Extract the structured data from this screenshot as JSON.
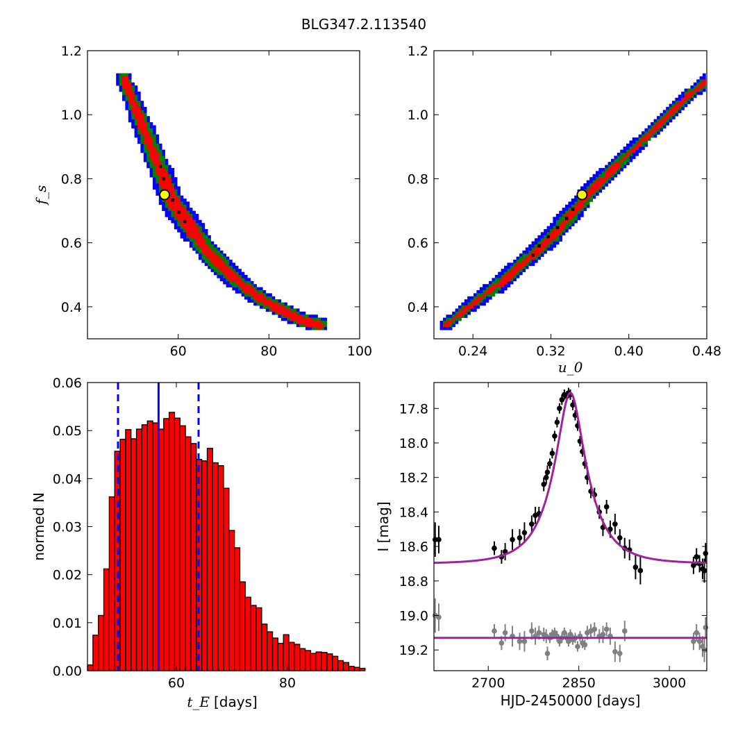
{
  "figure": {
    "title": "BLG347.2.113540"
  },
  "chart_data": [
    {
      "type": "heatmap",
      "id": "fs_vs_tE",
      "xlabel": "",
      "ylabel": "f_s",
      "xlim": [
        40,
        100
      ],
      "ylim": [
        0.3,
        1.2
      ],
      "xticks": [
        "60",
        "80",
        "100"
      ],
      "yticks": [
        "0.4",
        "0.6",
        "0.8",
        "1.0",
        "1.2"
      ],
      "colors": {
        "outer": "#0000ff",
        "middle": "#008000",
        "inner": "#ff0000",
        "chain": "#000000"
      },
      "ridge": [
        [
          47.5,
          1.12
        ],
        [
          50,
          1.03
        ],
        [
          52,
          0.96
        ],
        [
          54,
          0.89
        ],
        [
          56,
          0.82
        ],
        [
          58,
          0.74
        ],
        [
          60,
          0.7
        ],
        [
          63,
          0.64
        ],
        [
          66,
          0.58
        ],
        [
          70,
          0.52
        ],
        [
          74,
          0.47
        ],
        [
          78,
          0.43
        ],
        [
          82,
          0.4
        ],
        [
          86,
          0.37
        ],
        [
          91,
          0.35
        ]
      ],
      "best_fit": {
        "tE": 57.0,
        "fs": 0.75
      }
    },
    {
      "type": "heatmap",
      "id": "fs_vs_u0",
      "xlabel": "u_0",
      "ylabel": "",
      "xlim": [
        0.2,
        0.48
      ],
      "ylim": [
        0.3,
        1.2
      ],
      "xticks": [
        "0.24",
        "0.32",
        "0.40",
        "0.48"
      ],
      "yticks": [
        "0.4",
        "0.6",
        "0.8",
        "1.0",
        "1.2"
      ],
      "colors": {
        "outer": "#0000ff",
        "middle": "#008000",
        "inner": "#ff0000",
        "chain": "#000000"
      },
      "ridge": [
        [
          0.21,
          0.35
        ],
        [
          0.24,
          0.42
        ],
        [
          0.27,
          0.49
        ],
        [
          0.3,
          0.57
        ],
        [
          0.32,
          0.63
        ],
        [
          0.34,
          0.7
        ],
        [
          0.36,
          0.77
        ],
        [
          0.38,
          0.83
        ],
        [
          0.4,
          0.89
        ],
        [
          0.42,
          0.95
        ],
        [
          0.44,
          1.01
        ],
        [
          0.46,
          1.07
        ],
        [
          0.48,
          1.12
        ]
      ],
      "best_fit": {
        "u0": 0.352,
        "fs": 0.75
      }
    },
    {
      "type": "bar",
      "id": "tE_histogram",
      "xlabel": "t_E",
      "xlabel_unit": "[days]",
      "ylabel": "normed N",
      "xlim": [
        44,
        93
      ],
      "ylim": [
        0,
        0.06
      ],
      "xticks": [
        "60",
        "80"
      ],
      "yticks": [
        "0.00",
        "0.01",
        "0.02",
        "0.03",
        "0.04",
        "0.05",
        "0.06"
      ],
      "bin_start": 44.0,
      "bin_width": 0.98,
      "values": [
        0.0012,
        0.0074,
        0.0115,
        0.0212,
        0.0362,
        0.0457,
        0.0482,
        0.0502,
        0.0483,
        0.0503,
        0.0512,
        0.052,
        0.0516,
        0.0503,
        0.0525,
        0.0538,
        0.0526,
        0.051,
        0.0487,
        0.0473,
        0.044,
        0.0437,
        0.0463,
        0.0433,
        0.0427,
        0.038,
        0.0292,
        0.0256,
        0.0185,
        0.0153,
        0.0136,
        0.0131,
        0.0097,
        0.0081,
        0.0068,
        0.0057,
        0.0075,
        0.0059,
        0.0055,
        0.0046,
        0.0042,
        0.0036,
        0.0039,
        0.0038,
        0.0035,
        0.003,
        0.0021,
        0.0017,
        0.0009,
        0.0007,
        0.0005,
        0.0004,
        0.0003,
        0.0002,
        0.0004,
        0.0001,
        0.0002,
        0.0001,
        0.0001,
        0.0001
      ],
      "bar_color": "#ff0000",
      "median": 56.8,
      "interval": [
        49.5,
        64.0
      ]
    },
    {
      "type": "scatter",
      "id": "light_curve",
      "xlabel": "HJD-2450000 [days]",
      "ylabel": "I [mag]",
      "xlim": [
        2610,
        3062
      ],
      "ylim": [
        19.32,
        17.65
      ],
      "xticks": [
        "2700",
        "2850",
        "3000"
      ],
      "yticks": [
        "17.8",
        "18.0",
        "18.2",
        "18.4",
        "18.6",
        "18.8",
        "19.0",
        "19.2"
      ],
      "model": {
        "t0": 2836,
        "u0": 0.35,
        "tE": 57,
        "fs": 0.75,
        "baseline": 18.7,
        "color": "#a020a0"
      },
      "residual_baseline": 19.13,
      "points": [
        [
          2612,
          18.56,
          0.1
        ],
        [
          2618,
          18.56,
          0.08
        ],
        [
          2710,
          18.61,
          0.04
        ],
        [
          2722,
          18.66,
          0.04
        ],
        [
          2728,
          18.63,
          0.05
        ],
        [
          2740,
          18.56,
          0.06
        ],
        [
          2752,
          18.55,
          0.05
        ],
        [
          2760,
          18.52,
          0.06
        ],
        [
          2772,
          18.47,
          0.05
        ],
        [
          2778,
          18.42,
          0.05
        ],
        [
          2784,
          18.41,
          0.04
        ],
        [
          2792,
          18.24,
          0.04
        ],
        [
          2796,
          18.2,
          0.04
        ],
        [
          2798,
          18.17,
          0.04
        ],
        [
          2802,
          18.12,
          0.03
        ],
        [
          2806,
          18.06,
          0.03
        ],
        [
          2810,
          17.96,
          0.03
        ],
        [
          2814,
          17.88,
          0.03
        ],
        [
          2818,
          17.8,
          0.03
        ],
        [
          2822,
          17.75,
          0.03
        ],
        [
          2826,
          17.72,
          0.03
        ],
        [
          2830,
          17.73,
          0.03
        ],
        [
          2833,
          17.71,
          0.03
        ],
        [
          2836,
          17.72,
          0.03
        ],
        [
          2840,
          17.78,
          0.03
        ],
        [
          2844,
          17.84,
          0.03
        ],
        [
          2848,
          17.9,
          0.03
        ],
        [
          2852,
          17.99,
          0.03
        ],
        [
          2856,
          18.05,
          0.03
        ],
        [
          2860,
          18.12,
          0.03
        ],
        [
          2864,
          18.2,
          0.04
        ],
        [
          2870,
          18.28,
          0.04
        ],
        [
          2876,
          18.3,
          0.04
        ],
        [
          2884,
          18.4,
          0.04
        ],
        [
          2890,
          18.49,
          0.05
        ],
        [
          2896,
          18.37,
          0.04
        ],
        [
          2902,
          18.5,
          0.05
        ],
        [
          2910,
          18.47,
          0.06
        ],
        [
          2918,
          18.55,
          0.05
        ],
        [
          2926,
          18.61,
          0.06
        ],
        [
          2934,
          18.62,
          0.06
        ],
        [
          2944,
          18.72,
          0.07
        ],
        [
          2952,
          18.74,
          0.08
        ],
        [
          3040,
          18.71,
          0.05
        ],
        [
          3045,
          18.66,
          0.05
        ],
        [
          3050,
          18.7,
          0.05
        ],
        [
          3055,
          18.73,
          0.06
        ],
        [
          3058,
          18.74,
          0.07
        ],
        [
          3060,
          18.64,
          0.06
        ]
      ],
      "residuals": [
        [
          2612,
          19.0,
          0.1
        ],
        [
          2618,
          19.01,
          0.08
        ],
        [
          2710,
          19.09,
          0.04
        ],
        [
          2722,
          19.16,
          0.04
        ],
        [
          2728,
          19.1,
          0.05
        ],
        [
          2740,
          19.12,
          0.06
        ],
        [
          2752,
          19.15,
          0.05
        ],
        [
          2760,
          19.15,
          0.06
        ],
        [
          2772,
          19.09,
          0.05
        ],
        [
          2778,
          19.12,
          0.05
        ],
        [
          2784,
          19.1,
          0.04
        ],
        [
          2792,
          19.11,
          0.04
        ],
        [
          2796,
          19.12,
          0.04
        ],
        [
          2798,
          19.22,
          0.04
        ],
        [
          2802,
          19.13,
          0.03
        ],
        [
          2806,
          19.11,
          0.03
        ],
        [
          2810,
          19.1,
          0.03
        ],
        [
          2814,
          19.12,
          0.03
        ],
        [
          2818,
          19.15,
          0.03
        ],
        [
          2822,
          19.13,
          0.03
        ],
        [
          2826,
          19.1,
          0.03
        ],
        [
          2830,
          19.13,
          0.03
        ],
        [
          2833,
          19.15,
          0.03
        ],
        [
          2836,
          19.11,
          0.03
        ],
        [
          2840,
          19.14,
          0.03
        ],
        [
          2844,
          19.13,
          0.03
        ],
        [
          2848,
          19.18,
          0.03
        ],
        [
          2852,
          19.12,
          0.03
        ],
        [
          2856,
          19.16,
          0.03
        ],
        [
          2860,
          19.17,
          0.03
        ],
        [
          2864,
          19.1,
          0.04
        ],
        [
          2870,
          19.09,
          0.04
        ],
        [
          2876,
          19.08,
          0.04
        ],
        [
          2884,
          19.12,
          0.04
        ],
        [
          2890,
          19.11,
          0.05
        ],
        [
          2896,
          19.08,
          0.04
        ],
        [
          2902,
          19.12,
          0.05
        ],
        [
          2910,
          19.21,
          0.06
        ],
        [
          2918,
          19.22,
          0.05
        ],
        [
          2926,
          19.09,
          0.06
        ],
        [
          3040,
          19.15,
          0.05
        ],
        [
          3045,
          19.1,
          0.05
        ],
        [
          3050,
          19.15,
          0.05
        ],
        [
          3055,
          19.18,
          0.06
        ],
        [
          3058,
          19.2,
          0.07
        ],
        [
          3060,
          19.07,
          0.06
        ]
      ]
    }
  ]
}
